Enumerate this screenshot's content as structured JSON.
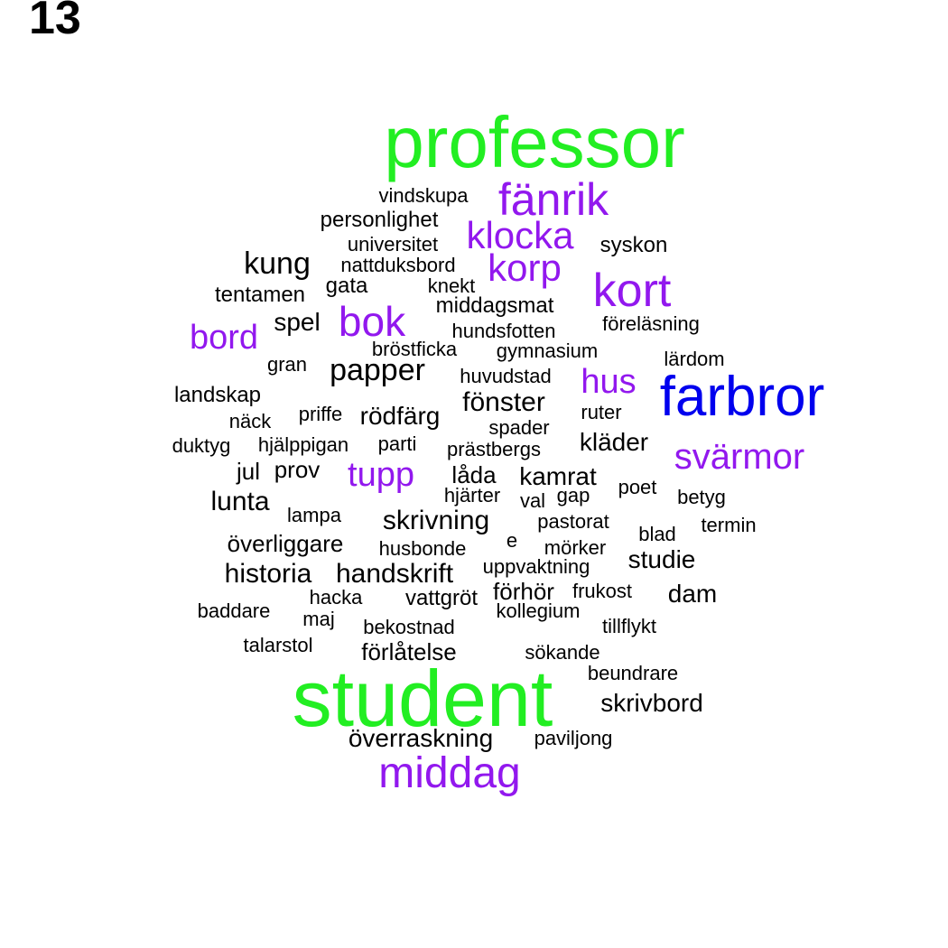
{
  "panel_label": "13",
  "colors": {
    "green": "#22ee22",
    "blue": "#0000ee",
    "purple": "#9218ee",
    "black": "#000000"
  },
  "words": [
    {
      "text": "professor",
      "color": "green"
    },
    {
      "text": "student",
      "color": "green"
    },
    {
      "text": "farbror",
      "color": "blue"
    },
    {
      "text": "fänrik",
      "color": "purple"
    },
    {
      "text": "klocka",
      "color": "purple"
    },
    {
      "text": "korp",
      "color": "purple"
    },
    {
      "text": "kort",
      "color": "purple"
    },
    {
      "text": "bok",
      "color": "purple"
    },
    {
      "text": "bord",
      "color": "purple"
    },
    {
      "text": "hus",
      "color": "purple"
    },
    {
      "text": "svärmor",
      "color": "purple"
    },
    {
      "text": "tupp",
      "color": "purple"
    },
    {
      "text": "middag",
      "color": "purple"
    },
    {
      "text": "vindskupa",
      "color": "black"
    },
    {
      "text": "personlighet",
      "color": "black"
    },
    {
      "text": "universitet",
      "color": "black"
    },
    {
      "text": "syskon",
      "color": "black"
    },
    {
      "text": "kung",
      "color": "black"
    },
    {
      "text": "nattduksbord",
      "color": "black"
    },
    {
      "text": "tentamen",
      "color": "black"
    },
    {
      "text": "gata",
      "color": "black"
    },
    {
      "text": "knekt",
      "color": "black"
    },
    {
      "text": "middagsmat",
      "color": "black"
    },
    {
      "text": "spel",
      "color": "black"
    },
    {
      "text": "hundsfotten",
      "color": "black"
    },
    {
      "text": "föreläsning",
      "color": "black"
    },
    {
      "text": "bröstficka",
      "color": "black"
    },
    {
      "text": "gymnasium",
      "color": "black"
    },
    {
      "text": "gran",
      "color": "black"
    },
    {
      "text": "papper",
      "color": "black"
    },
    {
      "text": "lärdom",
      "color": "black"
    },
    {
      "text": "huvudstad",
      "color": "black"
    },
    {
      "text": "landskap",
      "color": "black"
    },
    {
      "text": "fönster",
      "color": "black"
    },
    {
      "text": "näck",
      "color": "black"
    },
    {
      "text": "priffe",
      "color": "black"
    },
    {
      "text": "rödfärg",
      "color": "black"
    },
    {
      "text": "ruter",
      "color": "black"
    },
    {
      "text": "spader",
      "color": "black"
    },
    {
      "text": "duktyg",
      "color": "black"
    },
    {
      "text": "hjälppigan",
      "color": "black"
    },
    {
      "text": "parti",
      "color": "black"
    },
    {
      "text": "prästbergs",
      "color": "black"
    },
    {
      "text": "kläder",
      "color": "black"
    },
    {
      "text": "jul",
      "color": "black"
    },
    {
      "text": "prov",
      "color": "black"
    },
    {
      "text": "låda",
      "color": "black"
    },
    {
      "text": "kamrat",
      "color": "black"
    },
    {
      "text": "poet",
      "color": "black"
    },
    {
      "text": "hjärter",
      "color": "black"
    },
    {
      "text": "val",
      "color": "black"
    },
    {
      "text": "gap",
      "color": "black"
    },
    {
      "text": "betyg",
      "color": "black"
    },
    {
      "text": "lunta",
      "color": "black"
    },
    {
      "text": "lampa",
      "color": "black"
    },
    {
      "text": "skrivning",
      "color": "black"
    },
    {
      "text": "pastorat",
      "color": "black"
    },
    {
      "text": "termin",
      "color": "black"
    },
    {
      "text": "e",
      "color": "black"
    },
    {
      "text": "blad",
      "color": "black"
    },
    {
      "text": "överliggare",
      "color": "black"
    },
    {
      "text": "husbonde",
      "color": "black"
    },
    {
      "text": "mörker",
      "color": "black"
    },
    {
      "text": "studie",
      "color": "black"
    },
    {
      "text": "historia",
      "color": "black"
    },
    {
      "text": "handskrift",
      "color": "black"
    },
    {
      "text": "uppvaktning",
      "color": "black"
    },
    {
      "text": "förhör",
      "color": "black"
    },
    {
      "text": "frukost",
      "color": "black"
    },
    {
      "text": "dam",
      "color": "black"
    },
    {
      "text": "hacka",
      "color": "black"
    },
    {
      "text": "vattgröt",
      "color": "black"
    },
    {
      "text": "baddare",
      "color": "black"
    },
    {
      "text": "kollegium",
      "color": "black"
    },
    {
      "text": "maj",
      "color": "black"
    },
    {
      "text": "tillflykt",
      "color": "black"
    },
    {
      "text": "bekostnad",
      "color": "black"
    },
    {
      "text": "talarstol",
      "color": "black"
    },
    {
      "text": "förlåtelse",
      "color": "black"
    },
    {
      "text": "sökande",
      "color": "black"
    },
    {
      "text": "beundrare",
      "color": "black"
    },
    {
      "text": "skrivbord",
      "color": "black"
    },
    {
      "text": "överraskning",
      "color": "black"
    },
    {
      "text": "paviljong",
      "color": "black"
    }
  ]
}
